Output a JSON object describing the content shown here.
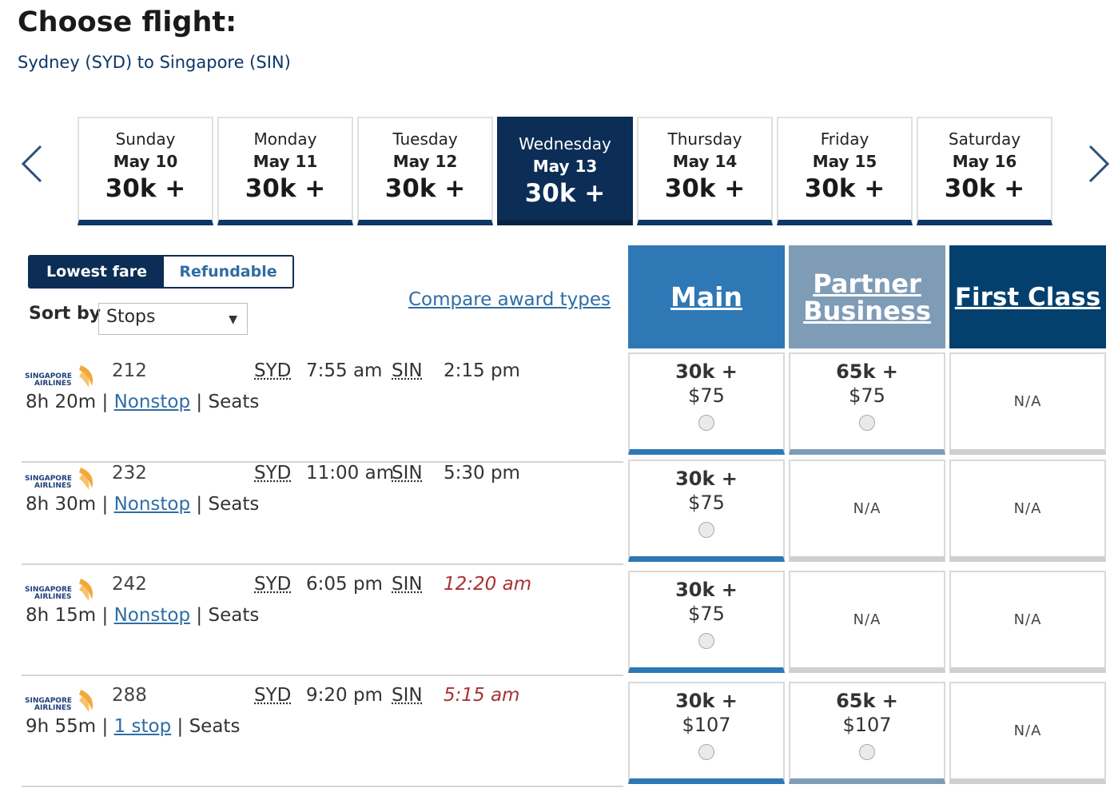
{
  "header": {
    "title": "Choose flight:",
    "route": "Sydney (SYD) to Singapore (SIN)"
  },
  "date_nav": {
    "prev_icon": "chevron-left-icon",
    "next_icon": "chevron-right-icon",
    "days": [
      {
        "day": "Sunday",
        "date": "May 10",
        "price": "30k +"
      },
      {
        "day": "Monday",
        "date": "May 11",
        "price": "30k +"
      },
      {
        "day": "Tuesday",
        "date": "May 12",
        "price": "30k +"
      },
      {
        "day": "Wednesday",
        "date": "May 13",
        "price": "30k +",
        "selected": true
      },
      {
        "day": "Thursday",
        "date": "May 14",
        "price": "30k +"
      },
      {
        "day": "Friday",
        "date": "May 15",
        "price": "30k +"
      },
      {
        "day": "Saturday",
        "date": "May 16",
        "price": "30k +"
      }
    ]
  },
  "filters": {
    "lowest_fare": "Lowest fare",
    "refundable": "Refundable",
    "selected": "Lowest fare",
    "sort_label": "Sort by",
    "sort_value": "Stops",
    "compare_link": "Compare award types"
  },
  "columns": {
    "main": "Main",
    "partner_business": "Partner Business",
    "first_class": "First Class"
  },
  "colors": {
    "navy": "#0c2d55",
    "main": "#2e78b5",
    "partner": "#7f9cb7",
    "first": "#03406e",
    "link": "#2f6da4",
    "next_day": "#a83232"
  },
  "airline_logo_text": "SINGAPORE AIRLINES",
  "flights": [
    {
      "number": "212",
      "origin": "SYD",
      "depart": "7:55 am",
      "dest": "SIN",
      "arrive": "2:15 pm",
      "next_day": false,
      "duration": "8h 20m",
      "stops": "Nonstop",
      "seats": "Seats",
      "main": {
        "miles": "30k +",
        "tax": "$75"
      },
      "partner": {
        "miles": "65k +",
        "tax": "$75"
      },
      "first": {
        "na": "N/A"
      }
    },
    {
      "number": "232",
      "origin": "SYD",
      "depart": "11:00 am",
      "dest": "SIN",
      "arrive": "5:30 pm",
      "next_day": false,
      "duration": "8h 30m",
      "stops": "Nonstop",
      "seats": "Seats",
      "main": {
        "miles": "30k +",
        "tax": "$75"
      },
      "partner": {
        "na": "N/A"
      },
      "first": {
        "na": "N/A"
      }
    },
    {
      "number": "242",
      "origin": "SYD",
      "depart": "6:05 pm",
      "dest": "SIN",
      "arrive": "12:20 am",
      "next_day": true,
      "duration": "8h 15m",
      "stops": "Nonstop",
      "seats": "Seats",
      "main": {
        "miles": "30k +",
        "tax": "$75"
      },
      "partner": {
        "na": "N/A"
      },
      "first": {
        "na": "N/A"
      }
    },
    {
      "number": "288",
      "origin": "SYD",
      "depart": "9:20 pm",
      "dest": "SIN",
      "arrive": "5:15 am",
      "next_day": true,
      "duration": "9h 55m",
      "stops": "1 stop",
      "seats": "Seats",
      "main": {
        "miles": "30k +",
        "tax": "$107"
      },
      "partner": {
        "miles": "65k +",
        "tax": "$107"
      },
      "first": {
        "na": "N/A"
      }
    }
  ]
}
